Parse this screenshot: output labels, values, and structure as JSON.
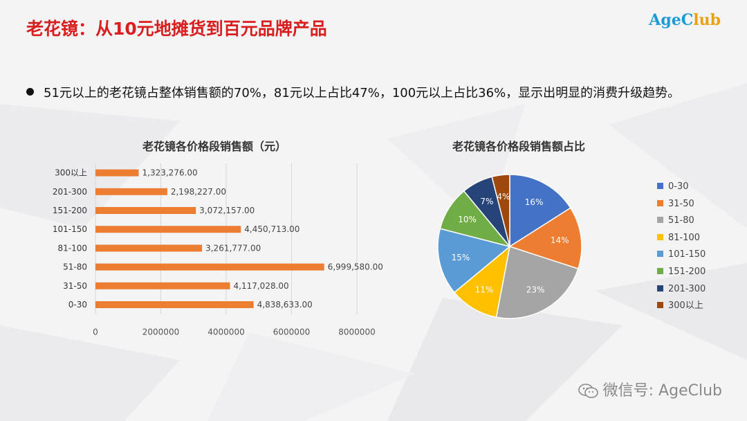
{
  "slide": {
    "title": "老花镜：从10元地摊货到百元品牌产品",
    "bullet": "51元以上的老花镜占整体销售额的70%，81元以上占比47%，100元以上占比36%，显示出明显的消费升级趋势。"
  },
  "logo": {
    "text_main": "AgeC",
    "text_accent": "lub"
  },
  "watermark": {
    "icon": "wechat-icon",
    "text": "微信号: AgeClub"
  },
  "colors": {
    "title": "#d81e1e",
    "bar": "#ed7d31",
    "pie": [
      "#4472c4",
      "#ed7d31",
      "#a5a5a5",
      "#ffc000",
      "#5b9bd5",
      "#70ad47",
      "#264478",
      "#9e480e"
    ]
  },
  "chart_data": [
    {
      "type": "bar",
      "orientation": "horizontal",
      "title": "老花镜各价格段销售额（元）",
      "categories": [
        "0-30",
        "31-50",
        "51-80",
        "81-100",
        "101-150",
        "151-200",
        "201-300",
        "300以上"
      ],
      "values": [
        4838633,
        4117028,
        6999580,
        3261777,
        4450713,
        3072157,
        2198227,
        1323276
      ],
      "value_labels": [
        "4,838,633.00",
        "4,117,028.00",
        "6,999,580.00",
        "3,261,777.00",
        "4,450,713.00",
        "3,072,157.00",
        "2,198,227.00",
        "1,323,276.00"
      ],
      "xlim": [
        0,
        8000000
      ],
      "xticks": [
        "0",
        "2000000",
        "4000000",
        "6000000",
        "8000000"
      ],
      "grid": true,
      "legend": "none"
    },
    {
      "type": "pie",
      "title": "老花镜各价格段销售额占比",
      "categories": [
        "0-30",
        "31-50",
        "51-80",
        "81-100",
        "101-150",
        "151-200",
        "201-300",
        "300以上"
      ],
      "values": [
        16,
        14,
        23,
        11,
        15,
        10,
        7,
        4
      ],
      "value_labels": [
        "16%",
        "14%",
        "23%",
        "11%",
        "15%",
        "10%",
        "7%",
        "4%"
      ],
      "legend": "right"
    }
  ]
}
